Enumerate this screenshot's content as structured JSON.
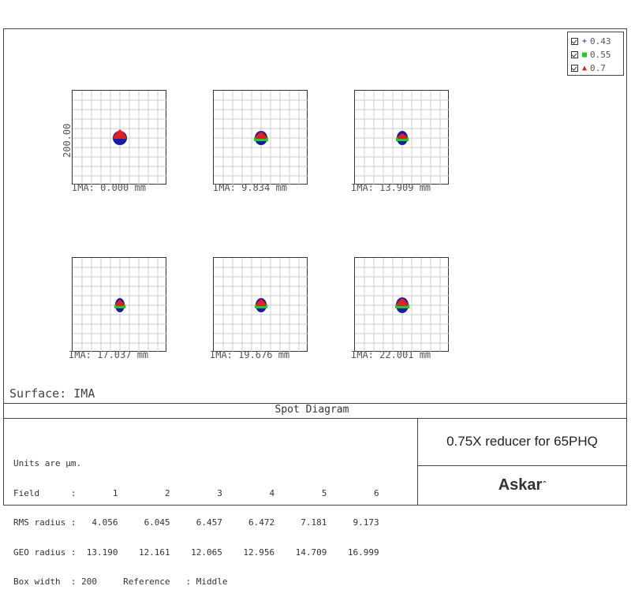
{
  "legend": [
    {
      "symbol": "+",
      "color": "#1a1aa6",
      "label": "0.43"
    },
    {
      "symbol": "■",
      "color": "#22cc22",
      "label": "0.55"
    },
    {
      "symbol": "▲",
      "color": "#dd2222",
      "label": "0.7"
    }
  ],
  "axis_label": "200.00",
  "spots": [
    {
      "ima": "IMA: 0.000 mm",
      "blue_rx": 9,
      "blue_ry": 9,
      "green": false,
      "red_h": 11
    },
    {
      "ima": "IMA: 9.834 mm",
      "blue_rx": 8,
      "blue_ry": 9,
      "green": true,
      "red_h": 8
    },
    {
      "ima": "IMA: 13.909 mm",
      "blue_rx": 7,
      "blue_ry": 9,
      "green": true,
      "red_h": 6
    },
    {
      "ima": "IMA: 17.037 mm",
      "blue_rx": 6,
      "blue_ry": 9,
      "green": true,
      "red_h": 7
    },
    {
      "ima": "IMA: 19.676 mm",
      "blue_rx": 7,
      "blue_ry": 9,
      "green": true,
      "red_h": 8
    },
    {
      "ima": "IMA: 22.001 mm",
      "blue_rx": 8,
      "blue_ry": 10,
      "green": true,
      "red_h": 9
    }
  ],
  "surface": "Surface: IMA",
  "title": "Spot Diagram",
  "info": {
    "units": "Units are µm.",
    "field_label": "Field      :",
    "fields": [
      "1",
      "2",
      "3",
      "4",
      "5",
      "6"
    ],
    "rms_label": "RMS radius :",
    "rms": [
      "4.056",
      "6.045",
      "6.457",
      "6.472",
      "7.181",
      "9.173"
    ],
    "geo_label": "GEO radius :",
    "geo": [
      "13.190",
      "12.161",
      "12.065",
      "12.956",
      "14.709",
      "16.999"
    ],
    "box_line": "Box width  : 200     Reference   : Middle"
  },
  "project_name": "0.75X reducer for 65PHQ",
  "brand": "Askar"
}
